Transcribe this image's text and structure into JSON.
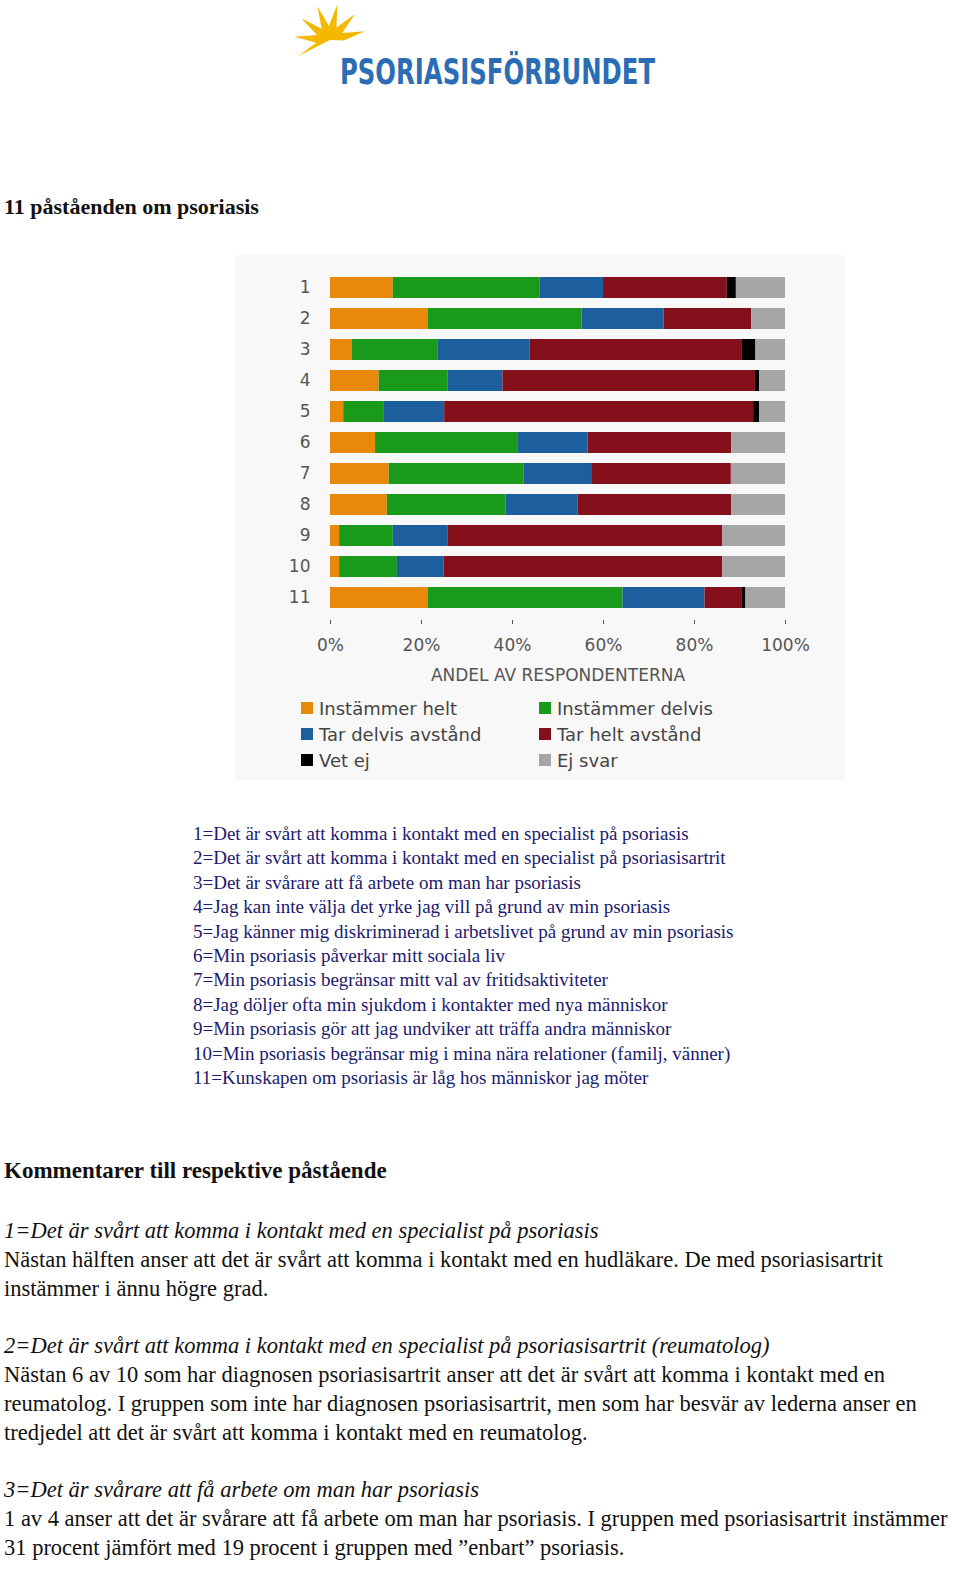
{
  "header": {
    "logo": "PSORIASISFÖRBUNDET"
  },
  "heading": "11 påståenden om psoriasis",
  "chart_data": {
    "type": "bar",
    "orientation": "horizontal",
    "stacked": true,
    "grid": false,
    "legend": "bottom",
    "x_label": "ANDEL AV RESPONDENTERNA",
    "categories": [
      "1",
      "2",
      "3",
      "4",
      "5",
      "6",
      "7",
      "8",
      "9",
      "10",
      "11"
    ],
    "xlim": [
      0,
      100
    ],
    "xticks": [
      {
        "value": 0,
        "label": "0%"
      },
      {
        "value": 20,
        "label": "20%"
      },
      {
        "value": 40,
        "label": "40%"
      },
      {
        "value": 60,
        "label": "60%"
      },
      {
        "value": 80,
        "label": "80%"
      },
      {
        "value": 100,
        "label": "100%"
      }
    ],
    "series": [
      {
        "name": "Instämmer helt",
        "color": "#e8890c",
        "values": [
          13.8,
          21.5,
          4.8,
          10.7,
          2.9,
          9.9,
          12.9,
          12.5,
          2.0,
          2.0,
          21.5
        ]
      },
      {
        "name": "Instämmer delvis",
        "color": "#1a9a1a",
        "values": [
          32.2,
          33.8,
          18.9,
          15.1,
          8.8,
          31.4,
          29.6,
          26.1,
          11.8,
          12.7,
          42.8
        ]
      },
      {
        "name": "Tar delvis avstånd",
        "color": "#1d5e9e",
        "values": [
          14.0,
          18.0,
          20.2,
          12.1,
          13.4,
          15.3,
          14.9,
          15.8,
          12.1,
          10.3,
          18.0
        ]
      },
      {
        "name": "Tar helt avstånd",
        "color": "#84101c",
        "values": [
          27.2,
          19.3,
          46.5,
          55.5,
          67.9,
          31.6,
          30.7,
          33.8,
          60.3,
          61.2,
          8.1
        ]
      },
      {
        "name": "Vet ej",
        "color": "#000000",
        "values": [
          2.0,
          0,
          3.1,
          0.9,
          1.3,
          0,
          0,
          0,
          0,
          0,
          0.9
        ]
      },
      {
        "name": "Ej svar",
        "color": "#a6a6a6",
        "values": [
          10.8,
          7.4,
          6.5,
          5.7,
          5.7,
          11.8,
          11.9,
          11.8,
          13.8,
          13.8,
          8.7
        ]
      }
    ]
  },
  "statements": [
    "1=Det är svårt att komma i kontakt med en specialist på psoriasis",
    "2=Det är svårt att komma i kontakt med en specialist på psoriasisartrit",
    "3=Det är svårare att få arbete om man har psoriasis",
    "4=Jag kan inte välja det yrke jag vill på grund av min psoriasis",
    "5=Jag känner mig diskriminerad i arbetslivet på grund av min psoriasis",
    "6=Min psoriasis påverkar mitt sociala liv",
    "7=Min psoriasis begränsar mitt val av fritidsaktiviteter",
    "8=Jag döljer ofta min sjukdom i kontakter med nya människor",
    "9=Min psoriasis gör att jag undviker att träffa andra människor",
    "10=Min psoriasis begränsar mig i mina nära relationer (familj, vänner)",
    "11=Kunskapen om psoriasis är låg hos människor jag möter"
  ],
  "comments_heading": "Kommentarer till respektive påstående",
  "comments": [
    {
      "heading": "1=Det är svårt att komma i kontakt med en specialist på psoriasis",
      "text": "Nästan hälften anser att det är svårt att komma i kontakt med en hudläkare. De med psoriasisartrit instämmer i ännu högre grad."
    },
    {
      "heading": "2=Det är svårt att komma i kontakt med en specialist på psoriasisartrit (reumatolog)",
      "text": "Nästan 6 av 10 som har diagnosen psoriasisartrit anser att det är svårt att komma i kontakt med en reumatolog. I gruppen som inte har diagnosen psoriasisartrit, men som har besvär av lederna anser en tredjedel att det är svårt att komma i kontakt med en reumatolog."
    },
    {
      "heading": "3=Det är svårare att få arbete om man har psoriasis",
      "text": "1 av 4 anser att det är svårare att få arbete om man har psoriasis. I gruppen med psoriasisartrit instämmer 31 procent jämfört med 19 procent i gruppen med ”enbart” psoriasis."
    }
  ]
}
